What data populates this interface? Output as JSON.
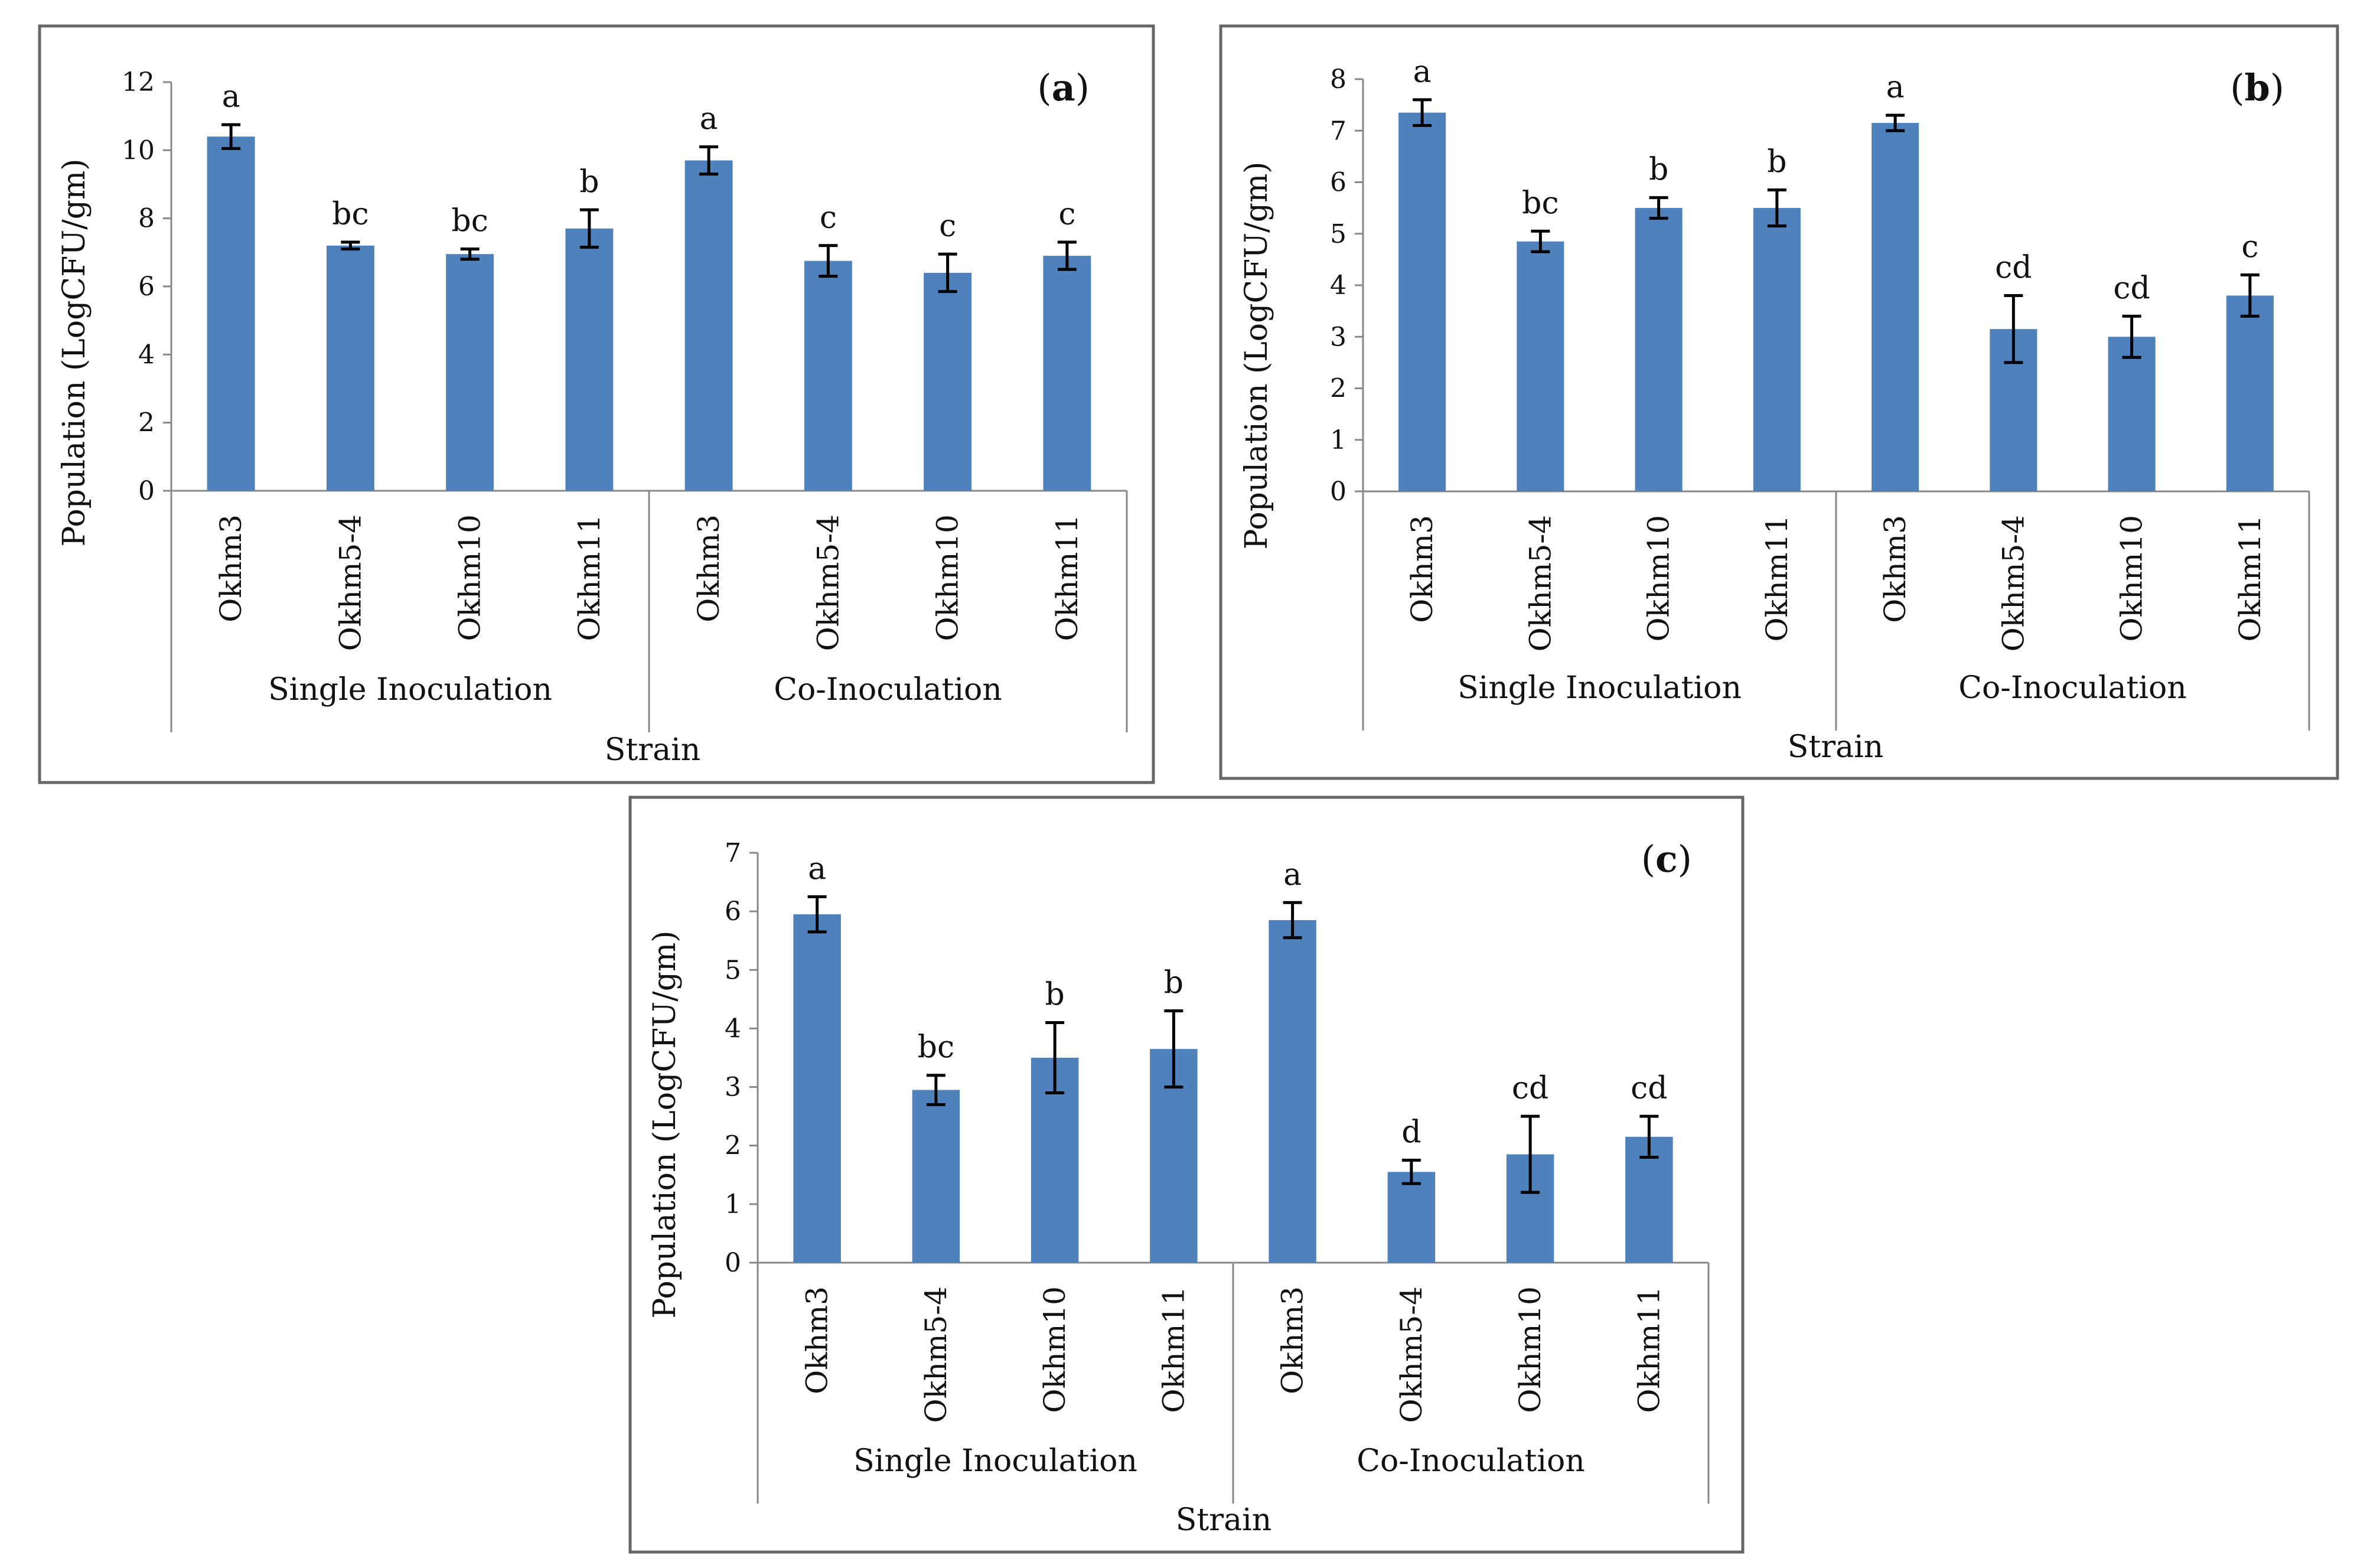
{
  "chart_data": [
    {
      "type": "bar",
      "panel_label": "a",
      "ylabel": "Population (LogCFU/gm)",
      "xlabel": "Strain",
      "ylim": [
        0,
        12
      ],
      "yticks": [
        0,
        2,
        4,
        6,
        8,
        10,
        12
      ],
      "categories": [
        "Okhm3",
        "Okhm5-4",
        "Okhm10",
        "Okhm11",
        "Okhm3",
        "Okhm5-4",
        "Okhm10",
        "Okhm11"
      ],
      "groups": [
        {
          "label": "Single Inoculation",
          "count": 4
        },
        {
          "label": "Co-Inoculation",
          "count": 4
        }
      ],
      "values": [
        10.4,
        7.2,
        6.95,
        7.7,
        9.7,
        6.75,
        6.4,
        6.9
      ],
      "errors": [
        0.35,
        0.1,
        0.15,
        0.55,
        0.4,
        0.45,
        0.55,
        0.4
      ],
      "significance": [
        "a",
        "bc",
        "bc",
        "b",
        "a",
        "c",
        "c",
        "c"
      ],
      "bar_color": "#4F81BD"
    },
    {
      "type": "bar",
      "panel_label": "b",
      "ylabel": "Population (LogCFU/gm)",
      "xlabel": "Strain",
      "ylim": [
        0,
        8
      ],
      "yticks": [
        0,
        1,
        2,
        3,
        4,
        5,
        6,
        7,
        8
      ],
      "categories": [
        "Okhm3",
        "Okhm5-4",
        "Okhm10",
        "Okhm11",
        "Okhm3",
        "Okhm5-4",
        "Okhm10",
        "Okhm11"
      ],
      "groups": [
        {
          "label": "Single Inoculation",
          "count": 4
        },
        {
          "label": "Co-Inoculation",
          "count": 4
        }
      ],
      "values": [
        7.35,
        4.85,
        5.5,
        5.5,
        7.15,
        3.15,
        3.0,
        3.8
      ],
      "errors": [
        0.25,
        0.2,
        0.2,
        0.35,
        0.15,
        0.65,
        0.4,
        0.4
      ],
      "significance": [
        "a",
        "bc",
        "b",
        "b",
        "a",
        "cd",
        "cd",
        "c"
      ],
      "bar_color": "#4F81BD"
    },
    {
      "type": "bar",
      "panel_label": "c",
      "ylabel": "Population (LogCFU/gm)",
      "xlabel": "Strain",
      "ylim": [
        0,
        7
      ],
      "yticks": [
        0,
        1,
        2,
        3,
        4,
        5,
        6,
        7
      ],
      "categories": [
        "Okhm3",
        "Okhm5-4",
        "Okhm10",
        "Okhm11",
        "Okhm3",
        "Okhm5-4",
        "Okhm10",
        "Okhm11"
      ],
      "groups": [
        {
          "label": "Single Inoculation",
          "count": 4
        },
        {
          "label": "Co-Inoculation",
          "count": 4
        }
      ],
      "values": [
        5.95,
        2.95,
        3.5,
        3.65,
        5.85,
        1.55,
        1.85,
        2.15
      ],
      "errors": [
        0.3,
        0.25,
        0.6,
        0.65,
        0.3,
        0.2,
        0.65,
        0.35
      ],
      "significance": [
        "a",
        "bc",
        "b",
        "b",
        "a",
        "d",
        "cd",
        "cd"
      ],
      "bar_color": "#4F81BD"
    }
  ]
}
